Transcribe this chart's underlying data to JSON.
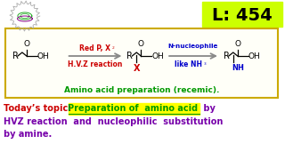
{
  "bg_color": "#ffffff",
  "lecture_box_color": "#ccff00",
  "lecture_text": "L: 454",
  "lecture_text_color": "#000000",
  "reaction_box_border": "#ccaa00",
  "today_text_color": "#cc0000",
  "highlight_color": "#ffff00",
  "highlight_text": "Preparation of  amino acid ",
  "highlight_text_color": "#009900",
  "bottom_line1_prefix": "Today’s topic: ",
  "bottom_line1_suffix": " by",
  "bottom_line2": "HVZ reaction  and  nucleophilic  substitution",
  "bottom_line3": "by amine.",
  "bottom_text_color": "#7700aa",
  "arrow_color": "#888888",
  "red_text_color": "#cc0000",
  "blue_text_color": "#0000cc",
  "green_text_color": "#009900",
  "black_text_color": "#000000"
}
